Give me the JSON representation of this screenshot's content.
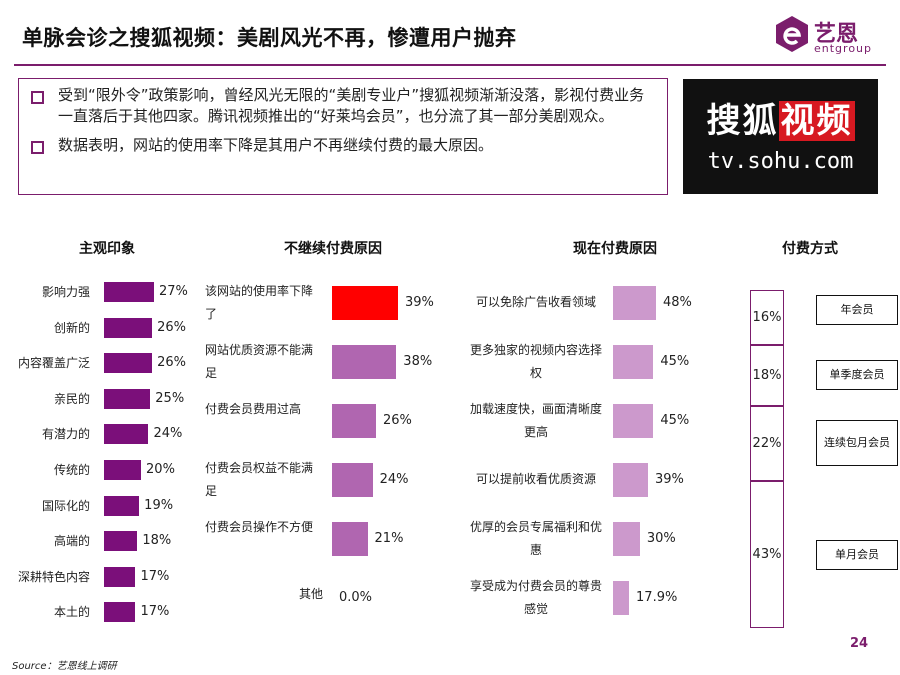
{
  "title": "单脉会诊之搜狐视频：美剧风光不再，惨遭用户抛弃",
  "logo": {
    "main": "艺恩",
    "sub": "entgroup"
  },
  "bullets": [
    "受到“限外令”政策影响，曾经风光无限的“美剧专业户”搜狐视频渐渐没落，影视付费业务一直落后于其他四家。腾讯视频推出的“好莱坞会员”，也分流了其一部分美剧观众。",
    "数据表明，网站的使用率下降是其用户不再继续付费的最大原因。"
  ],
  "sohu_image": {
    "brand_a": "搜狐",
    "brand_b": "视频",
    "url": "tv.sohu.com"
  },
  "colors": {
    "accent": "#7b1d6c",
    "impression_bar": "#7b0f7a",
    "red": "#ff0000",
    "mid_purple": "#b066b0",
    "light_purple": "#cc99cc"
  },
  "chart_data": [
    {
      "type": "bar",
      "orientation": "horizontal",
      "title": "主观印象",
      "categories": [
        "影响力强",
        "创新的",
        "内容覆盖广泛",
        "亲民的",
        "有潜力的",
        "传统的",
        "国际化的",
        "高端的",
        "深耕特色内容",
        "本土的"
      ],
      "values": [
        27,
        26,
        26,
        25,
        24,
        20,
        19,
        18,
        17,
        17
      ],
      "value_labels": [
        "27%",
        "26%",
        "26%",
        "25%",
        "24%",
        "20%",
        "19%",
        "18%",
        "17%",
        "17%"
      ],
      "xlim": [
        0,
        27
      ]
    },
    {
      "type": "bar",
      "orientation": "horizontal",
      "title": "不继续付费原因",
      "categories": [
        "该网站的使用率下降了",
        "网站优质资源不能满足",
        "付费会员费用过高",
        "付费会员权益不能满足",
        "付费会员操作不方便",
        "其他"
      ],
      "values": [
        39,
        38,
        26,
        24,
        21,
        0.0
      ],
      "value_labels": [
        "39%",
        "38%",
        "26%",
        "24%",
        "21%",
        "0.0%"
      ],
      "highlight_index": 0,
      "xlim": [
        0,
        39
      ]
    },
    {
      "type": "bar",
      "orientation": "horizontal",
      "title": "现在付费原因",
      "categories": [
        "可以免除广告收看领域",
        "更多独家的视频内容选择权",
        "加载速度快，画面清晰度更高",
        "可以提前收看优质资源",
        "优厚的会员专属福利和优惠",
        "享受成为付费会员的尊贵感觉"
      ],
      "values": [
        48,
        45,
        45,
        39,
        30,
        17.9
      ],
      "value_labels": [
        "48%",
        "45%",
        "45%",
        "39%",
        "30%",
        "17.9%"
      ],
      "xlim": [
        0,
        48
      ]
    },
    {
      "type": "bar",
      "orientation": "stacked-vertical",
      "title": "付费方式",
      "categories": [
        "年会员",
        "单季度会员",
        "连续包月会员",
        "单月会员"
      ],
      "values": [
        16,
        18,
        22,
        43
      ],
      "value_labels": [
        "16%",
        "18%",
        "22%",
        "43%"
      ]
    }
  ],
  "source": "Source：艺恩线上调研",
  "page_number": "24"
}
